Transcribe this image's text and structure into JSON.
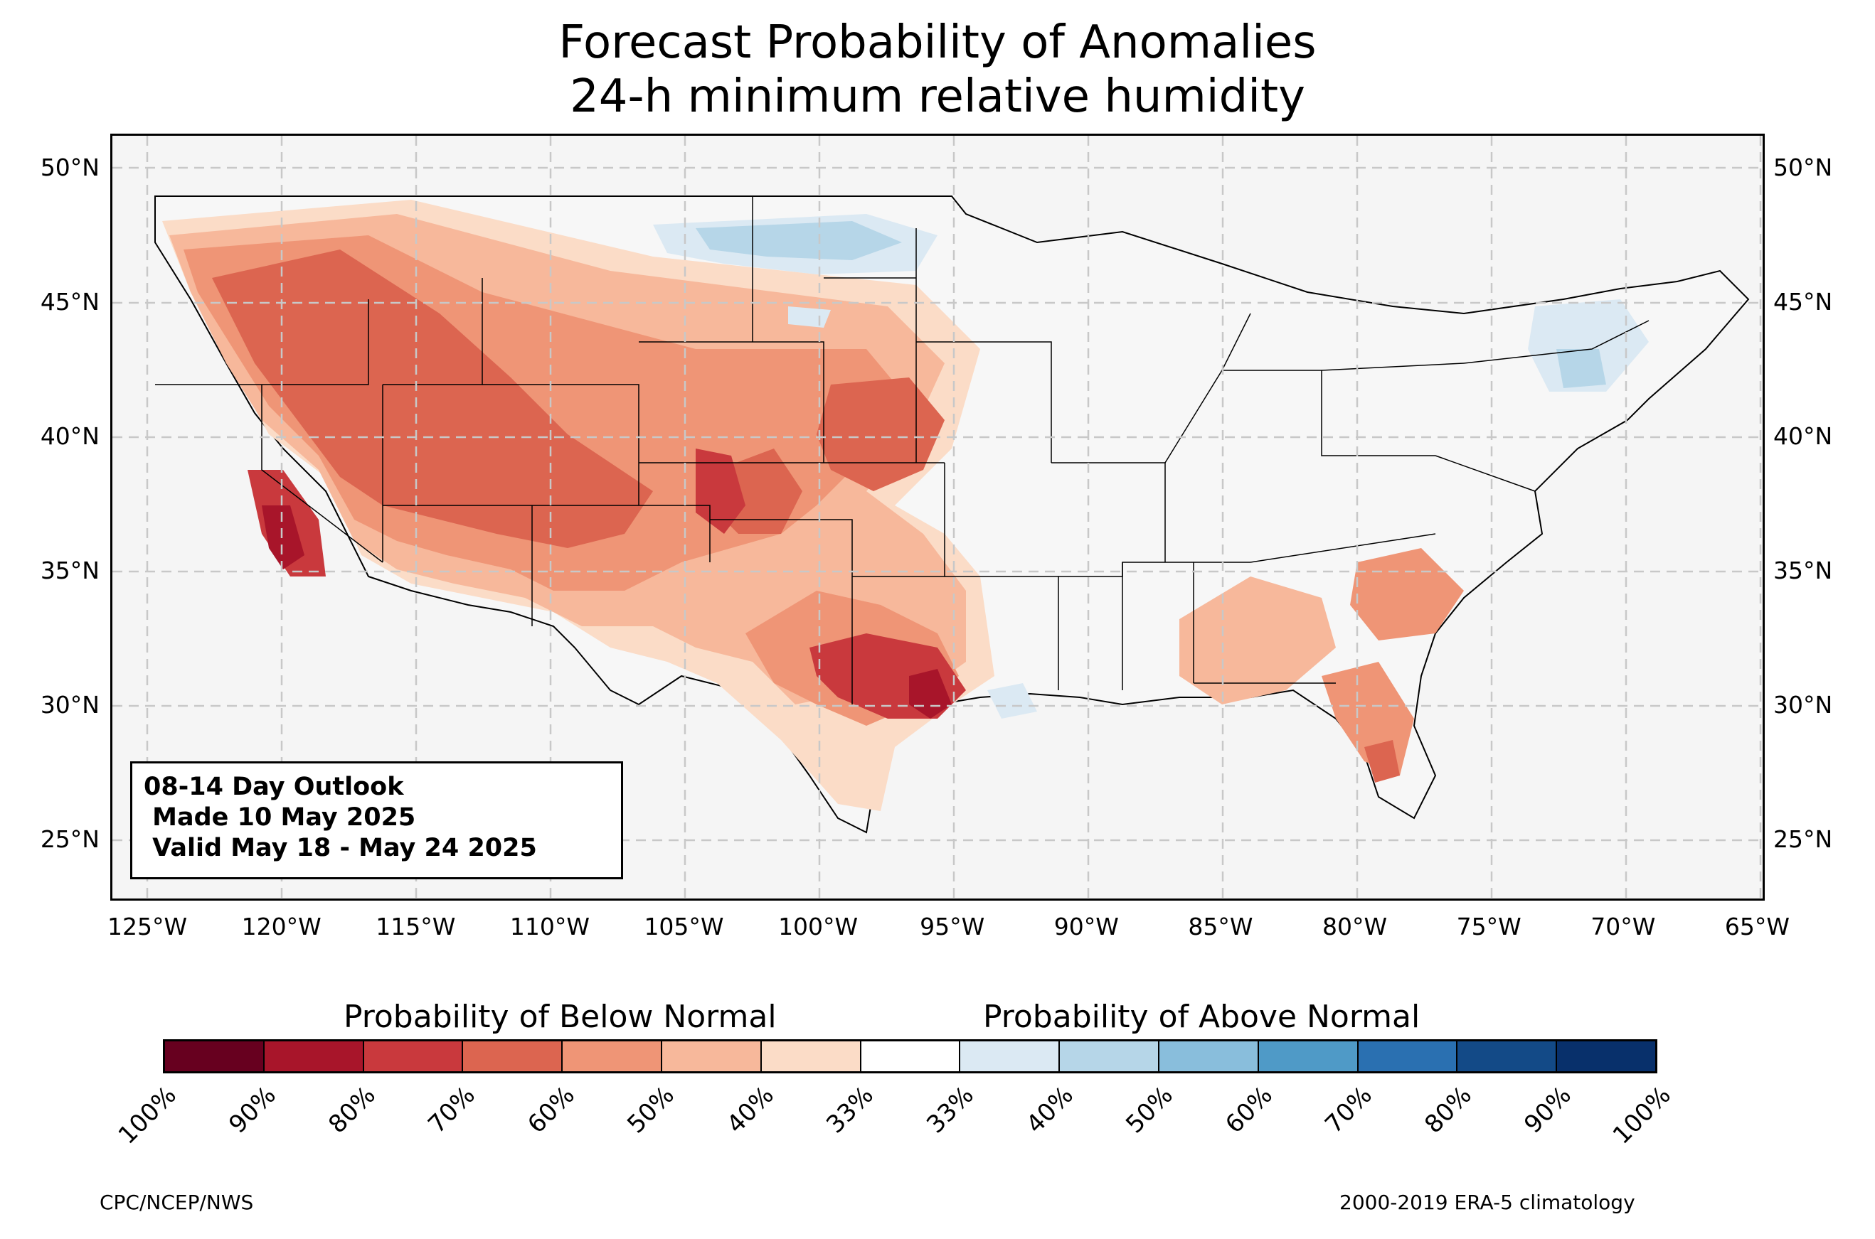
{
  "title": {
    "line1": "Forecast Probability of Anomalies",
    "line2": "24-h minimum relative humidity"
  },
  "map": {
    "lon_range": [
      -126.3,
      -64.8
    ],
    "lat_range": [
      22.8,
      51.2
    ],
    "gridlines": true,
    "lat_ticks": [
      {
        "value": 50,
        "label": "50°N"
      },
      {
        "value": 45,
        "label": "45°N"
      },
      {
        "value": 40,
        "label": "40°N"
      },
      {
        "value": 35,
        "label": "35°N"
      },
      {
        "value": 30,
        "label": "30°N"
      },
      {
        "value": 25,
        "label": "25°N"
      }
    ],
    "lon_ticks": [
      {
        "value": -125,
        "label": "125°W"
      },
      {
        "value": -120,
        "label": "120°W"
      },
      {
        "value": -115,
        "label": "115°W"
      },
      {
        "value": -110,
        "label": "110°W"
      },
      {
        "value": -105,
        "label": "105°W"
      },
      {
        "value": -100,
        "label": "100°W"
      },
      {
        "value": -95,
        "label": "95°W"
      },
      {
        "value": -90,
        "label": "90°W"
      },
      {
        "value": -85,
        "label": "85°W"
      },
      {
        "value": -80,
        "label": "80°W"
      },
      {
        "value": -75,
        "label": "75°W"
      },
      {
        "value": -70,
        "label": "70°W"
      },
      {
        "value": -65,
        "label": "65°W"
      }
    ]
  },
  "outlook": {
    "line1": "08-14 Day Outlook",
    "line2": " Made 10 May 2025",
    "line3": " Valid May 18 - May 24 2025"
  },
  "legend": {
    "below_label": "Probability of Below Normal",
    "above_label": "Probability of Above Normal",
    "colors": [
      "#67001f",
      "#a8152a",
      "#c9393d",
      "#dc6550",
      "#ef9576",
      "#f7b89b",
      "#fbdcc7",
      "#ffffff",
      "#dbe9f3",
      "#b6d6e8",
      "#89bedc",
      "#4f9ac7",
      "#2a70b1",
      "#134a87",
      "#08306b"
    ],
    "tick_labels": [
      "100%",
      "90%",
      "80%",
      "70%",
      "60%",
      "50%",
      "40%",
      "33%",
      "33%",
      "40%",
      "50%",
      "60%",
      "70%",
      "80%",
      "90%",
      "100%"
    ]
  },
  "credits": {
    "left": "CPC/NCEP/NWS",
    "right": "2000-2019 ERA-5 climatology"
  }
}
